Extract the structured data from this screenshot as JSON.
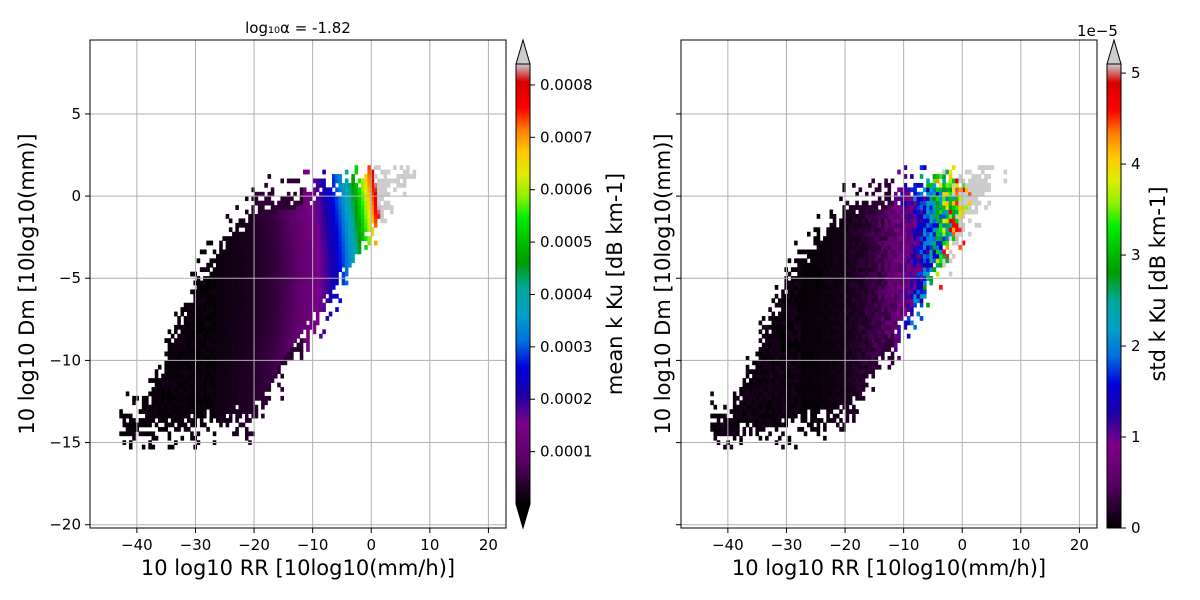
{
  "chart_data": [
    {
      "type": "heatmap",
      "title": "log₁₀α = -1.82",
      "xlabel": "10 log10 RR [10log10(mm/h)]",
      "ylabel": "10 log10 Dm [10log10(mm)]",
      "xlim": [
        -48,
        23
      ],
      "ylim": [
        -20.2,
        9.5
      ],
      "x_ticks": [
        -40,
        -30,
        -20,
        -10,
        0,
        10,
        20
      ],
      "x_tick_labels": [
        "−40",
        "−30",
        "−20",
        "−10",
        "0",
        "10",
        "20"
      ],
      "y_ticks": [
        5,
        0,
        -5,
        -10,
        -15,
        -20
      ],
      "y_tick_labels": [
        "5",
        "0",
        "−5",
        "−10",
        "−15",
        "−20"
      ],
      "grid": true,
      "colormap": "nipy_spectral",
      "colorbar": {
        "label": "mean k Ku [dB km-1]",
        "range": [
          0,
          0.00084
        ],
        "ticks": [
          0.0001,
          0.0002,
          0.0003,
          0.0004,
          0.0005,
          0.0006,
          0.0007,
          0.0008
        ],
        "tick_labels": [
          "0.0001",
          "0.0002",
          "0.0003",
          "0.0004",
          "0.0005",
          "0.0006",
          "0.0007",
          "0.0008"
        ],
        "extend": "both",
        "offset_text": ""
      },
      "field": {
        "description_values": "mean k at RR=0 dB is 0.00075, falls to near 0 around RR=-25 dB",
        "data_region_rr_range": [
          -43,
          7
        ],
        "data_region_dm_range": [
          -15.5,
          1.6
        ]
      }
    },
    {
      "type": "heatmap",
      "title": "",
      "xlabel": "10 log10 RR [10log10(mm/h)]",
      "ylabel": "10 log10 Dm [10log10(mm)]",
      "xlim": [
        -48,
        23
      ],
      "ylim": [
        -20.2,
        9.5
      ],
      "x_ticks": [
        -40,
        -30,
        -20,
        -10,
        0,
        10,
        20
      ],
      "x_tick_labels": [
        "−40",
        "−30",
        "−20",
        "−10",
        "0",
        "10",
        "20"
      ],
      "y_ticks": [
        5,
        0,
        -5,
        -10,
        -15,
        -20
      ],
      "y_tick_labels": [
        "",
        "",
        "",
        "",
        "",
        ""
      ],
      "grid": true,
      "colormap": "nipy_spectral",
      "colorbar": {
        "label": "std k Ku [dB km-1]",
        "range": [
          0,
          5.1
        ],
        "ticks": [
          0,
          1,
          2,
          3,
          4,
          5
        ],
        "tick_labels": [
          "0",
          "1",
          "2",
          "3",
          "4",
          "5"
        ],
        "extend": "max",
        "offset_text": "1e−5"
      },
      "field": {
        "description_values": "std k (x1e-5) near 0 for low RR, rising to about 5 near RR=0 dB",
        "data_region_rr_range": [
          -43,
          7
        ],
        "data_region_dm_range": [
          -15.5,
          1.6
        ]
      }
    }
  ]
}
